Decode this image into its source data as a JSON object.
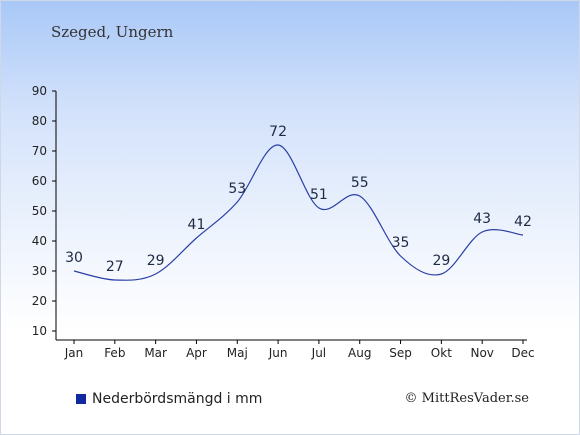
{
  "title": "Szeged, Ungern",
  "legend": {
    "label": "Nederbördsmängd i mm"
  },
  "credit": "© MittResVader.se",
  "colors": {
    "line": "#2a3fa6",
    "axis": "#000000",
    "label": "#1f2a44",
    "swatch": "#1028a0"
  },
  "chart_data": {
    "type": "line",
    "title": "Szeged, Ungern",
    "categories": [
      "Jan",
      "Feb",
      "Mar",
      "Apr",
      "Maj",
      "Jun",
      "Jul",
      "Aug",
      "Sep",
      "Okt",
      "Nov",
      "Dec"
    ],
    "series": [
      {
        "name": "Nederbördsmängd i mm",
        "values": [
          30,
          27,
          29,
          41,
          53,
          72,
          51,
          55,
          35,
          29,
          43,
          42
        ]
      }
    ],
    "yticks": [
      10,
      20,
      30,
      40,
      50,
      60,
      70,
      80,
      90
    ],
    "ylim": [
      10,
      90
    ],
    "data_labels": true,
    "grid": false,
    "legend_position": "bottom-left"
  }
}
